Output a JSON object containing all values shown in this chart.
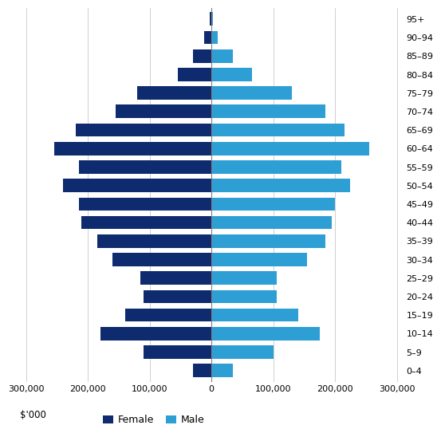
{
  "age_groups": [
    "0–4",
    "5–9",
    "10–14",
    "15–19",
    "20–24",
    "25–29",
    "30–34",
    "35–39",
    "40–44",
    "45–49",
    "50–54",
    "55–59",
    "60–64",
    "65–69",
    "70–74",
    "75–79",
    "80–84",
    "85–89",
    "90–94",
    "95+"
  ],
  "female": [
    30000,
    110000,
    180000,
    140000,
    110000,
    115000,
    160000,
    185000,
    210000,
    215000,
    240000,
    215000,
    255000,
    220000,
    155000,
    120000,
    55000,
    30000,
    12000,
    3000
  ],
  "male": [
    35000,
    100000,
    175000,
    140000,
    105000,
    105000,
    155000,
    185000,
    195000,
    200000,
    225000,
    210000,
    255000,
    215000,
    185000,
    130000,
    65000,
    35000,
    10000,
    2000
  ],
  "female_color": "#0d2b6e",
  "male_color": "#2e9fd4",
  "xlim": 310000,
  "xtick_values": [
    -300000,
    -200000,
    -100000,
    0,
    100000,
    200000,
    300000
  ],
  "xtick_labels": [
    "300,000",
    "200,000",
    "100,000",
    "0",
    "100,000",
    "200,000",
    "300,000"
  ],
  "legend_female": "Female",
  "legend_male": "Male",
  "bar_height": 0.72,
  "background_color": "#ffffff",
  "grid_color": "#d0d0d0",
  "vline_color": "#808080"
}
